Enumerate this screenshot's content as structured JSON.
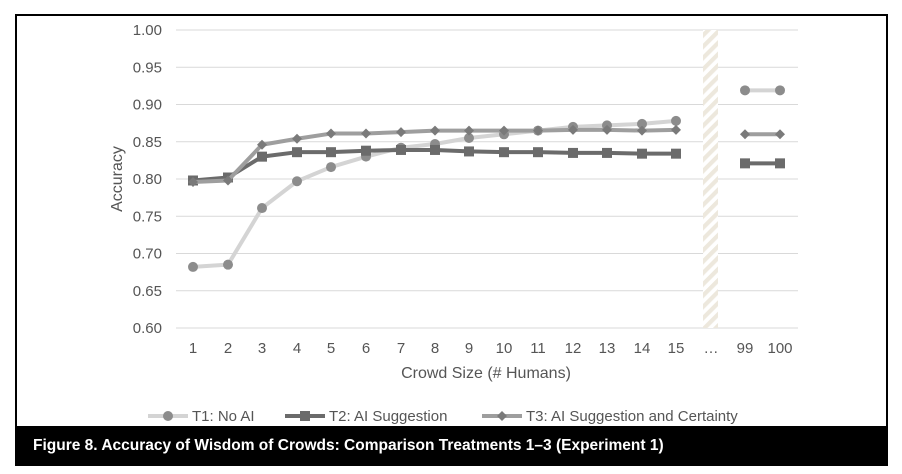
{
  "caption": "Figure 8.  Accuracy of Wisdom of Crowds:  Comparison Treatments 1–3 (Experiment 1)",
  "colors": {
    "t1": "#d4d4d4",
    "t1_marker": "#8c8c8c",
    "t2": "#6b6b6b",
    "t3": "#9e9e9e",
    "t3_marker": "#7a7a7a",
    "grid": "#d9d9d9",
    "text": "#555555",
    "hatch": "#ede8dd"
  },
  "chart_data": {
    "type": "line",
    "title": "",
    "xlabel": "Crowd Size (# Humans)",
    "ylabel": "Accuracy",
    "ylim": [
      0.6,
      1.0
    ],
    "yticks": [
      "0.60",
      "0.65",
      "0.70",
      "0.75",
      "0.80",
      "0.85",
      "0.90",
      "0.95",
      "1.00"
    ],
    "grid": true,
    "legend_position": "bottom",
    "x": [
      "1",
      "2",
      "3",
      "4",
      "5",
      "6",
      "7",
      "8",
      "9",
      "10",
      "11",
      "12",
      "13",
      "14",
      "15",
      "…",
      "99",
      "100"
    ],
    "series": [
      {
        "name": "T1: No AI",
        "marker": "circle",
        "values": [
          0.682,
          0.685,
          0.761,
          0.797,
          0.816,
          0.83,
          0.842,
          0.847,
          0.855,
          0.86,
          0.865,
          0.87,
          0.872,
          0.874,
          0.878,
          null,
          0.919,
          0.919
        ]
      },
      {
        "name": "T2: AI Suggestion",
        "marker": "square",
        "values": [
          0.798,
          0.802,
          0.83,
          0.836,
          0.836,
          0.838,
          0.839,
          0.839,
          0.837,
          0.836,
          0.836,
          0.835,
          0.835,
          0.834,
          0.834,
          null,
          0.821,
          0.821
        ]
      },
      {
        "name": "T3: AI Suggestion and Certainty",
        "marker": "diamond",
        "values": [
          0.796,
          0.798,
          0.846,
          0.854,
          0.861,
          0.861,
          0.863,
          0.865,
          0.865,
          0.865,
          0.865,
          0.866,
          0.866,
          0.865,
          0.866,
          null,
          0.86,
          0.86
        ]
      }
    ]
  }
}
